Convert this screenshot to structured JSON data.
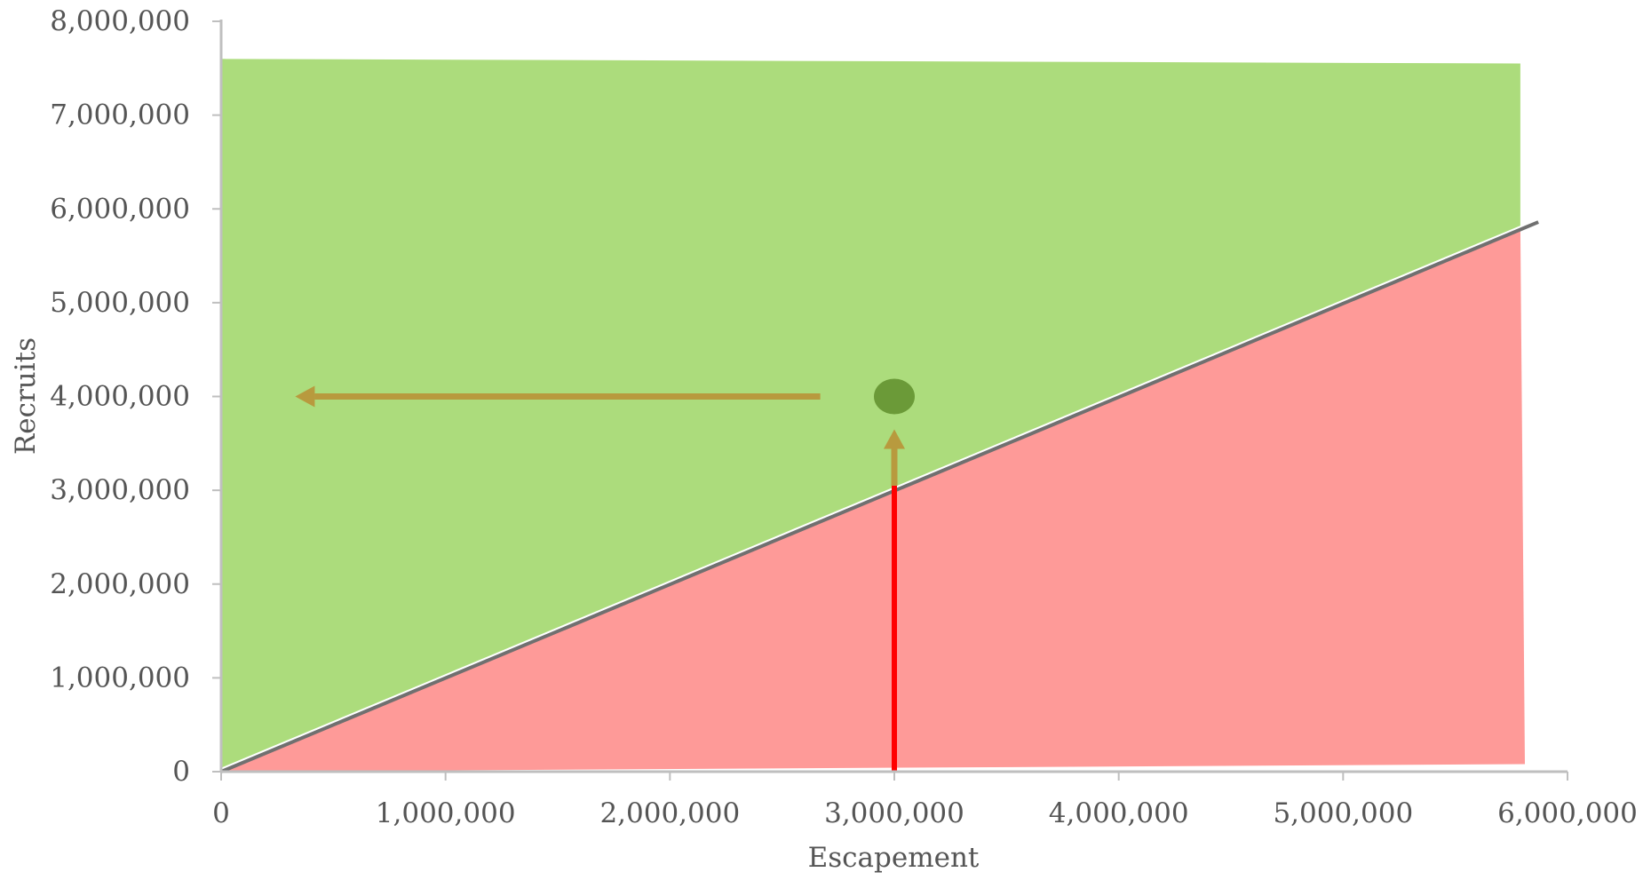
{
  "chart_data": {
    "type": "area",
    "title": "",
    "xlabel": "Escapement",
    "ylabel": "Recruits",
    "xlim": [
      0,
      6000000
    ],
    "ylim": [
      0,
      8000000
    ],
    "x_ticks": [
      0,
      1000000,
      2000000,
      3000000,
      4000000,
      5000000,
      6000000
    ],
    "y_ticks": [
      0,
      1000000,
      2000000,
      3000000,
      4000000,
      5000000,
      6000000,
      7000000,
      8000000
    ],
    "x_tick_labels": [
      "0",
      "1,000,000",
      "2,000,000",
      "3,000,000",
      "4,000,000",
      "5,000,000",
      "6,000,000"
    ],
    "y_tick_labels": [
      "0",
      "1,000,000",
      "2,000,000",
      "3,000,000",
      "4,000,000",
      "5,000,000",
      "6,000,000",
      "7,000,000",
      "8,000,000"
    ],
    "grid": false,
    "legend": "none",
    "regions": [
      {
        "role": "above-replacement",
        "color": "#acdc7c",
        "points": [
          [
            0,
            7600000
          ],
          [
            5790000,
            7550000
          ],
          [
            5790000,
            5800000
          ],
          [
            0,
            0
          ]
        ]
      },
      {
        "role": "below-replacement",
        "color": "#fe9a98",
        "points": [
          [
            0,
            0
          ],
          [
            5790000,
            5800000
          ],
          [
            5810000,
            80000
          ],
          [
            0,
            0
          ]
        ]
      }
    ],
    "replacement_line": {
      "color": "#707070",
      "points": [
        [
          0,
          0
        ],
        [
          5870000,
          5860000
        ]
      ]
    },
    "markers": [
      {
        "role": "stock-recruit-point",
        "shape": "ellipse",
        "x": 3000000,
        "y": 4000000,
        "color": "#6b9a38"
      }
    ],
    "annotations": [
      {
        "role": "vertical-red-line",
        "type": "line",
        "color": "#ff0000",
        "from": [
          3000000,
          0
        ],
        "to": [
          3000000,
          3050000
        ]
      },
      {
        "role": "up-arrow",
        "type": "arrow",
        "color": "#b89a3e",
        "from": [
          3000000,
          3050000
        ],
        "to": [
          3000000,
          3650000
        ]
      },
      {
        "role": "left-arrow",
        "type": "arrow",
        "color": "#b89a3e",
        "from": [
          2670000,
          4000000
        ],
        "to": [
          330000,
          4000000
        ]
      }
    ]
  }
}
